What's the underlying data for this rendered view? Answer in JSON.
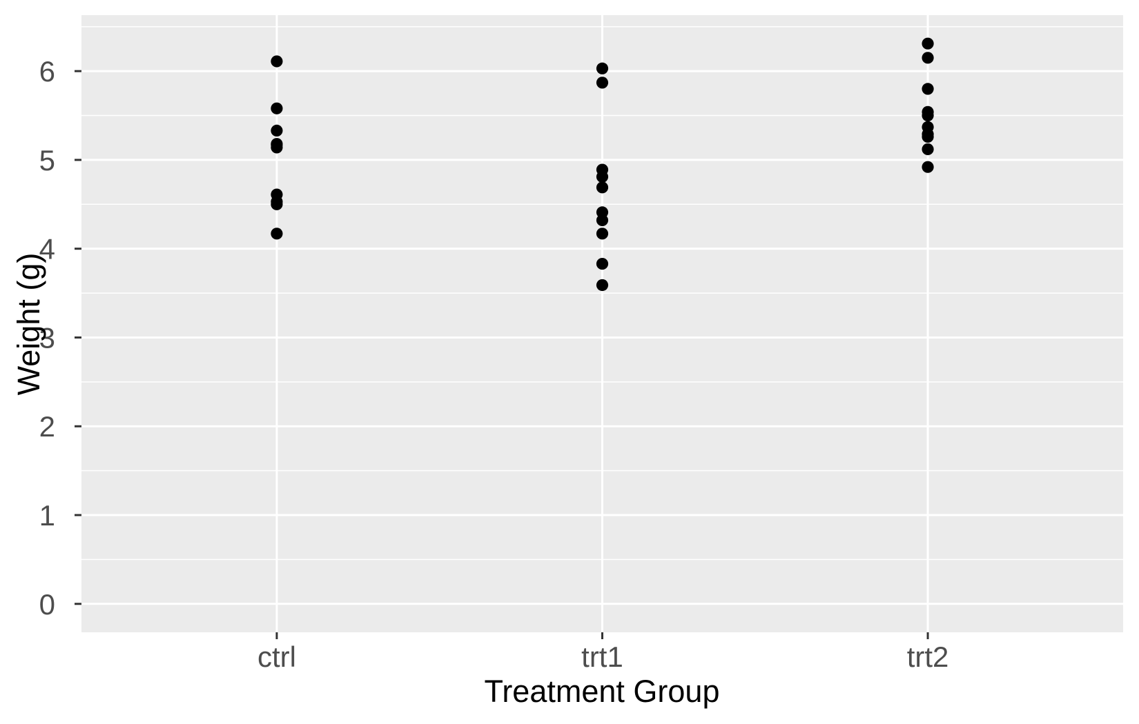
{
  "chart_data": {
    "type": "scatter",
    "title": "",
    "xlabel": "Treatment Group",
    "ylabel": "Weight (g)",
    "categories": [
      "ctrl",
      "trt1",
      "trt2"
    ],
    "series": [
      {
        "name": "ctrl",
        "values": [
          4.17,
          5.58,
          5.18,
          6.11,
          4.5,
          4.61,
          5.17,
          4.53,
          5.33,
          5.14
        ]
      },
      {
        "name": "trt1",
        "values": [
          4.81,
          4.17,
          4.41,
          3.59,
          5.87,
          3.83,
          6.03,
          4.89,
          4.32,
          4.69
        ]
      },
      {
        "name": "trt2",
        "values": [
          6.31,
          5.12,
          5.54,
          5.5,
          5.37,
          5.29,
          4.92,
          6.15,
          5.8,
          5.26
        ]
      }
    ],
    "y_ticks": [
      0,
      1,
      2,
      3,
      4,
      5,
      6
    ],
    "y_minor_ticks": [
      0.5,
      1.5,
      2.5,
      3.5,
      4.5,
      5.5,
      6.5
    ],
    "ylim": [
      -0.32,
      6.63
    ],
    "grid": true,
    "legend": "none",
    "colors": {
      "page_bg": "#FFFFFF",
      "panel_bg": "#EBEBEB",
      "grid": "#FFFFFF",
      "point": "#000000",
      "tick_label": "#4D4D4D",
      "axis_title": "#000000",
      "tick_mark": "#333333"
    }
  }
}
